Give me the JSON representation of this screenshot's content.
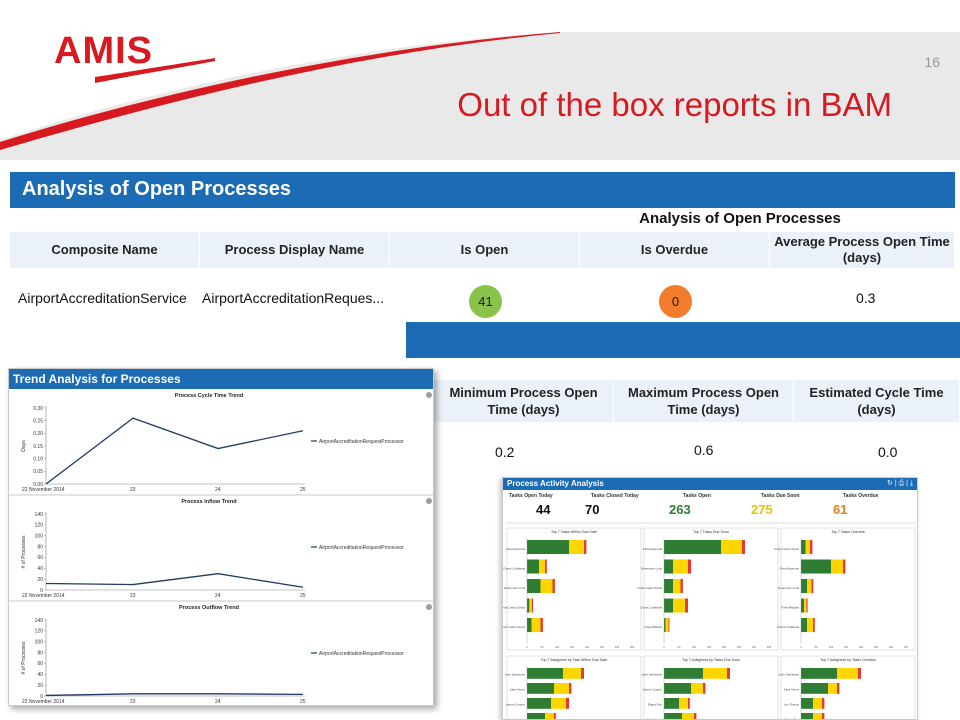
{
  "slide": {
    "logo": "AMIS",
    "number": "16",
    "title": "Out of the box reports in BAM"
  },
  "colors": {
    "brand_red": "#d71920",
    "header_blue": "#1c6bb5",
    "line_navy": "#1f3a66",
    "green": "#2e7d32",
    "yellow": "#fdd600",
    "orange": "#e57c21",
    "red": "#e53935"
  },
  "open_processes": {
    "panel_title": "Analysis of Open Processes",
    "group_title": "Analysis of Open Processes",
    "columns": [
      "Composite Name",
      "Process Display Name",
      "Is Open",
      "Is Overdue",
      "Average Process Open Time (days)"
    ],
    "row": {
      "composite_name": "AirportAccreditationService",
      "process_display_name": "AirportAccreditationReques...",
      "is_open": "41",
      "is_overdue": "0",
      "avg_open_time": "0.3"
    },
    "columns2": [
      "Minimum Process Open Time (days)",
      "Maximum Process Open Time (days)",
      "Estimated Cycle Time (days)"
    ],
    "row2": {
      "min": "0.2",
      "max": "0.6",
      "est": "0.0"
    }
  },
  "trend": {
    "panel_title": "Trend Analysis for Processes",
    "legend_label": "AirportAccreditationRequestProcessor",
    "x_labels": [
      "22 November 2014",
      "23",
      "24",
      "25"
    ]
  },
  "chart_data": [
    {
      "type": "line",
      "title": "Process Cycle Time Trend",
      "ylabel": "Days",
      "x": [
        "22 November 2014",
        "23",
        "24",
        "25"
      ],
      "series": [
        {
          "name": "AirportAccreditationRequestProcessor",
          "values": [
            0.0,
            0.26,
            0.14,
            0.21
          ]
        }
      ],
      "yticks": [
        "0.00",
        "0.05",
        "0.10",
        "0.15",
        "0.20",
        "0.25",
        "0.30"
      ],
      "ylim": [
        0,
        0.3
      ]
    },
    {
      "type": "line",
      "title": "Process Inflow Trend",
      "ylabel": "# of Processes",
      "x": [
        "22 November 2014",
        "23",
        "24",
        "25"
      ],
      "series": [
        {
          "name": "AirportAccreditationRequestProcessor",
          "values": [
            12,
            10,
            30,
            5
          ]
        }
      ],
      "yticks": [
        "0",
        "20",
        "40",
        "60",
        "80",
        "100",
        "120",
        "140"
      ],
      "ylim": [
        0,
        140
      ]
    },
    {
      "type": "line",
      "title": "Process Outflow Trend",
      "ylabel": "# of Processes",
      "x": [
        "22 November 2014",
        "23",
        "24",
        "25"
      ],
      "series": [
        {
          "name": "AirportAccreditationRequestProcessor",
          "values": [
            1,
            4,
            4,
            3
          ]
        }
      ],
      "yticks": [
        "0",
        "20",
        "40",
        "60",
        "80",
        "100",
        "120",
        "140"
      ],
      "ylim": [
        0,
        140
      ]
    }
  ],
  "activity": {
    "panel_title": "Process Activity Analysis",
    "icons": "↻ | ⎙ | ⤓",
    "kpis": [
      {
        "label": "Tasks Open Today",
        "value": "44",
        "color": "#111111"
      },
      {
        "label": "Tasks Closed Today",
        "value": "70",
        "color": "#111111"
      },
      {
        "label": "Tasks Open",
        "value": "263",
        "color": "#2e7d32"
      },
      {
        "label": "Tasks Due Soon",
        "value": "275",
        "color": "#f2c200"
      },
      {
        "label": "Tasks Overdue",
        "value": "61",
        "color": "#e57c21"
      }
    ],
    "mini_charts": [
      {
        "title": "Top 7 Tasks Within Due Date",
        "rows": [
          {
            "label": "Final Approval",
            "v": [
              140,
              50,
              8
            ]
          },
          {
            "label": "Check Collateral",
            "v": [
              40,
              20,
              6
            ]
          },
          {
            "label": "Determine Limit",
            "v": [
              45,
              40,
              8
            ]
          },
          {
            "label": "Final Credit Check",
            "v": [
              8,
              8,
              4
            ]
          },
          {
            "label": "Final Credit Check",
            "v": [
              15,
              30,
              8
            ]
          }
        ]
      },
      {
        "title": "Top 7 Tasks Due Soon",
        "rows": [
          {
            "label": "Final Approval",
            "v": [
              190,
              70,
              10
            ]
          },
          {
            "label": "Determine Limit",
            "v": [
              30,
              50,
              10
            ]
          },
          {
            "label": "Final Credit Check",
            "v": [
              30,
              25,
              8
            ]
          },
          {
            "label": "Check Collateral",
            "v": [
              30,
              40,
              10
            ]
          },
          {
            "label": "Final Affidavit",
            "v": [
              5,
              10,
              3
            ]
          }
        ]
      },
      {
        "title": "Top 7 Tasks Overdue",
        "rows": [
          {
            "label": "Final Credit Check",
            "v": [
              15,
              15,
              8
            ]
          },
          {
            "label": "Final Approval",
            "v": [
              100,
              40,
              8
            ]
          },
          {
            "label": "Determine Limit",
            "v": [
              20,
              15,
              6
            ]
          },
          {
            "label": "Final Affidavit",
            "v": [
              10,
              8,
              4
            ]
          },
          {
            "label": "Check Collateral",
            "v": [
              20,
              20,
              6
            ]
          }
        ]
      }
    ],
    "mini_charts_2": [
      {
        "title": "Top 7 Assignees by Task Within Due Date",
        "rows": [
          {
            "label": "John Steinbeck",
            "v": [
              120,
              60,
              10
            ]
          },
          {
            "label": "Jules Verne",
            "v": [
              90,
              50,
              8
            ]
          },
          {
            "label": "James Cooper",
            "v": [
              80,
              50,
              10
            ]
          },
          {
            "label": "Jack London",
            "v": [
              60,
              30,
              6
            ]
          }
        ]
      },
      {
        "title": "Top 7 Assignees by Tasks Due Soon",
        "rows": [
          {
            "label": "John Steinbeck",
            "v": [
              130,
              80,
              10
            ]
          },
          {
            "label": "James Cooper",
            "v": [
              90,
              40,
              8
            ]
          },
          {
            "label": "Edgar Poe",
            "v": [
              50,
              30,
              6
            ]
          },
          {
            "label": "Jules Verne",
            "v": [
              60,
              40,
              8
            ]
          }
        ]
      },
      {
        "title": "Top 7 Assignees by Tasks Overdue",
        "rows": [
          {
            "label": "John Steinbeck",
            "v": [
              120,
              70,
              10
            ]
          },
          {
            "label": "Jules Verne",
            "v": [
              90,
              30,
              8
            ]
          },
          {
            "label": "Leo Tolstoy",
            "v": [
              40,
              30,
              8
            ]
          },
          {
            "label": "Edgar Poe",
            "v": [
              40,
              30,
              8
            ]
          }
        ]
      }
    ],
    "axis_ticks": [
      "0",
      "50",
      "100",
      "150",
      "200",
      "250",
      "300",
      "350"
    ]
  }
}
